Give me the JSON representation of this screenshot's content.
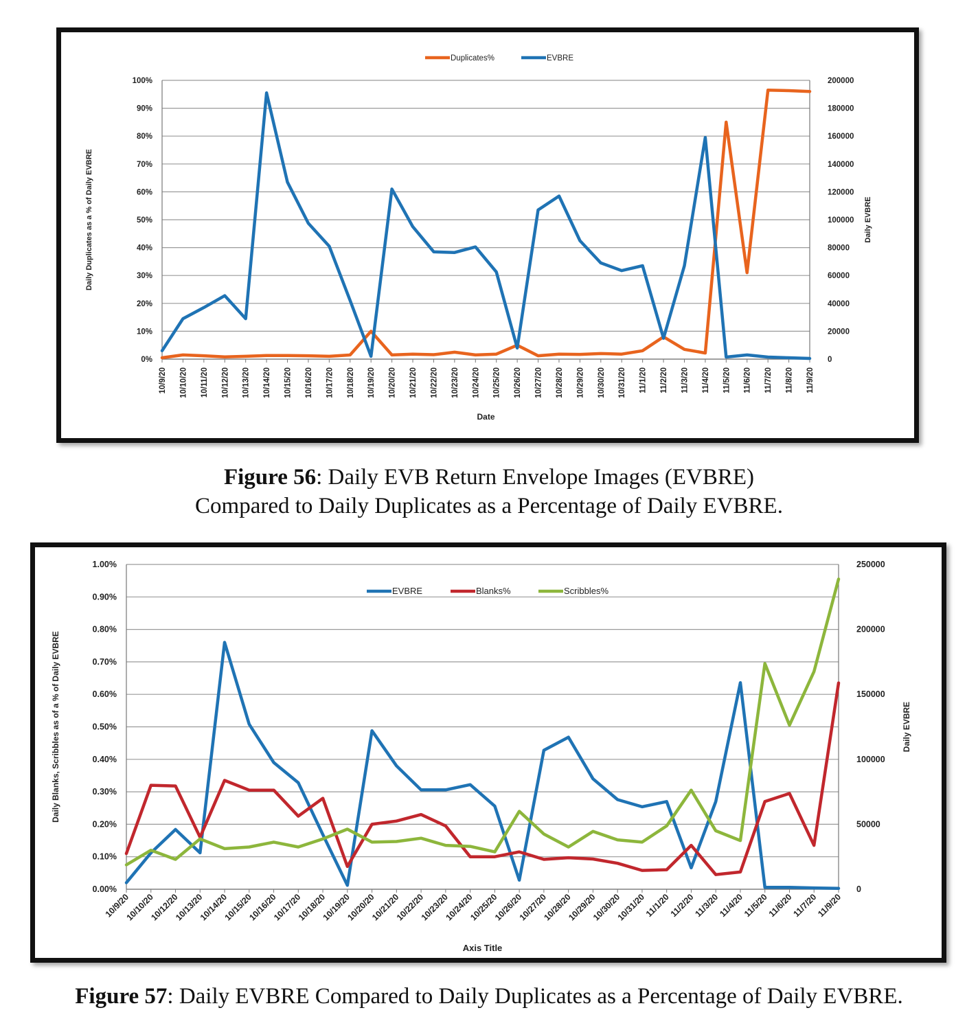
{
  "chart_data": [
    {
      "type": "line",
      "legend": {
        "position": "top",
        "entries": [
          "Duplicates%",
          "EVBRE"
        ]
      },
      "xlabel": "Date",
      "ylabel_left": "Daily Duplicates as a % of Daily EVBRE",
      "ylabel_right": "Daily EVBRE",
      "categories": [
        "10/9/20",
        "10/10/20",
        "10/11/20",
        "10/12/20",
        "10/13/20",
        "10/14/20",
        "10/15/20",
        "10/16/20",
        "10/17/20",
        "10/18/20",
        "10/19/20",
        "10/20/20",
        "10/21/20",
        "10/22/20",
        "10/23/20",
        "10/24/20",
        "10/25/20",
        "10/26/20",
        "10/27/20",
        "10/28/20",
        "10/29/20",
        "10/30/20",
        "10/31/20",
        "11/1/20",
        "11/2/20",
        "11/3/20",
        "11/4/20",
        "11/5/20",
        "11/6/20",
        "11/7/20",
        "11/8/20",
        "11/9/20"
      ],
      "ylim_left": [
        0,
        100
      ],
      "ylim_right": [
        0,
        200000
      ],
      "yticks_left": [
        "0%",
        "10%",
        "20%",
        "30%",
        "40%",
        "50%",
        "60%",
        "70%",
        "80%",
        "90%",
        "100%"
      ],
      "yticks_right": [
        "0",
        "20000",
        "40000",
        "60000",
        "80000",
        "100000",
        "120000",
        "140000",
        "160000",
        "180000",
        "200000"
      ],
      "series": [
        {
          "name": "Duplicates%",
          "axis": "left",
          "color": "#e8641e",
          "values": [
            0.5,
            1.5,
            1.2,
            0.8,
            1.0,
            1.3,
            1.3,
            1.2,
            1.0,
            1.5,
            10.0,
            1.5,
            1.8,
            1.6,
            2.5,
            1.5,
            1.8,
            5.0,
            1.2,
            1.8,
            1.7,
            2.0,
            1.8,
            3.0,
            8.0,
            3.5,
            2.2,
            85.0,
            31.0,
            96.5,
            96.3,
            96.0
          ]
        },
        {
          "name": "EVBRE",
          "axis": "right",
          "color": "#1f73b4",
          "values": [
            6000,
            29000,
            37000,
            45500,
            29000,
            191000,
            127000,
            97500,
            81000,
            42000,
            2000,
            122000,
            95000,
            77000,
            76500,
            80500,
            62500,
            8000,
            107000,
            117000,
            85000,
            69000,
            63500,
            67000,
            15000,
            67000,
            159000,
            1500,
            3000,
            1500,
            1000,
            500
          ]
        }
      ]
    },
    {
      "type": "line",
      "legend": {
        "position": "top",
        "entries": [
          "EVBRE",
          "Blanks%",
          "Scribbles%"
        ]
      },
      "xlabel": "Axis Title",
      "ylabel_left": "Daily Blanks, Scribbles as of a % of Daily EVBRE",
      "ylabel_right": "Daily EVBRE",
      "categories": [
        "10/9/20",
        "10/10/20",
        "10/12/20",
        "10/13/20",
        "10/14/20",
        "10/15/20",
        "10/16/20",
        "10/17/20",
        "10/18/20",
        "10/19/20",
        "10/20/20",
        "10/21/20",
        "10/22/20",
        "10/23/20",
        "10/24/20",
        "10/25/20",
        "10/26/20",
        "10/27/20",
        "10/28/20",
        "10/29/20",
        "10/30/20",
        "10/31/20",
        "11/1/20",
        "11/2/20",
        "11/3/20",
        "11/4/20",
        "11/5/20",
        "11/6/20",
        "11/7/20",
        "11/9/20"
      ],
      "ylim_left": [
        0,
        1.0
      ],
      "ylim_right": [
        0,
        250000
      ],
      "yticks_left": [
        "0.00%",
        "0.10%",
        "0.20%",
        "0.30%",
        "0.40%",
        "0.50%",
        "0.60%",
        "0.70%",
        "0.80%",
        "0.90%",
        "1.00%"
      ],
      "yticks_right": [
        "0",
        "50000",
        "100000",
        "150000",
        "200000",
        "250000"
      ],
      "series": [
        {
          "name": "EVBRE",
          "axis": "right",
          "color": "#1f73b4",
          "values": [
            5000,
            28000,
            46000,
            28000,
            190000,
            127000,
            97500,
            82000,
            42000,
            3000,
            122000,
            95000,
            76500,
            76500,
            80500,
            64000,
            7000,
            107000,
            117000,
            85000,
            69000,
            63500,
            67500,
            16500,
            67500,
            159000,
            1500,
            1500,
            1000,
            700
          ]
        },
        {
          "name": "Blanks%",
          "axis": "left",
          "color": "#c1272d",
          "values": [
            0.11,
            0.32,
            0.318,
            0.16,
            0.335,
            0.305,
            0.305,
            0.225,
            0.28,
            0.07,
            0.2,
            0.21,
            0.23,
            0.195,
            0.1,
            0.1,
            0.115,
            0.092,
            0.097,
            0.093,
            0.08,
            0.058,
            0.06,
            0.135,
            0.045,
            0.053,
            0.27,
            0.295,
            0.135,
            0.635
          ]
        },
        {
          "name": "Scribbles%",
          "axis": "left",
          "color": "#8db63c",
          "values": [
            0.075,
            0.12,
            0.092,
            0.155,
            0.125,
            0.13,
            0.145,
            0.13,
            0.155,
            0.185,
            0.145,
            0.147,
            0.157,
            0.135,
            0.132,
            0.115,
            0.24,
            0.17,
            0.13,
            0.178,
            0.152,
            0.145,
            0.195,
            0.305,
            0.18,
            0.15,
            0.695,
            0.505,
            0.67,
            0.955
          ]
        }
      ]
    }
  ],
  "captions": [
    {
      "label": "Figure 56",
      "line1": ": Daily EVB Return Envelope Images (EVBRE)",
      "line2": "Compared to Daily Duplicates as a Percentage of Daily EVBRE."
    },
    {
      "label": "Figure 57",
      "line1": ": Daily EVBRE Compared to Daily Duplicates as a Percentage of Daily EVBRE."
    }
  ]
}
